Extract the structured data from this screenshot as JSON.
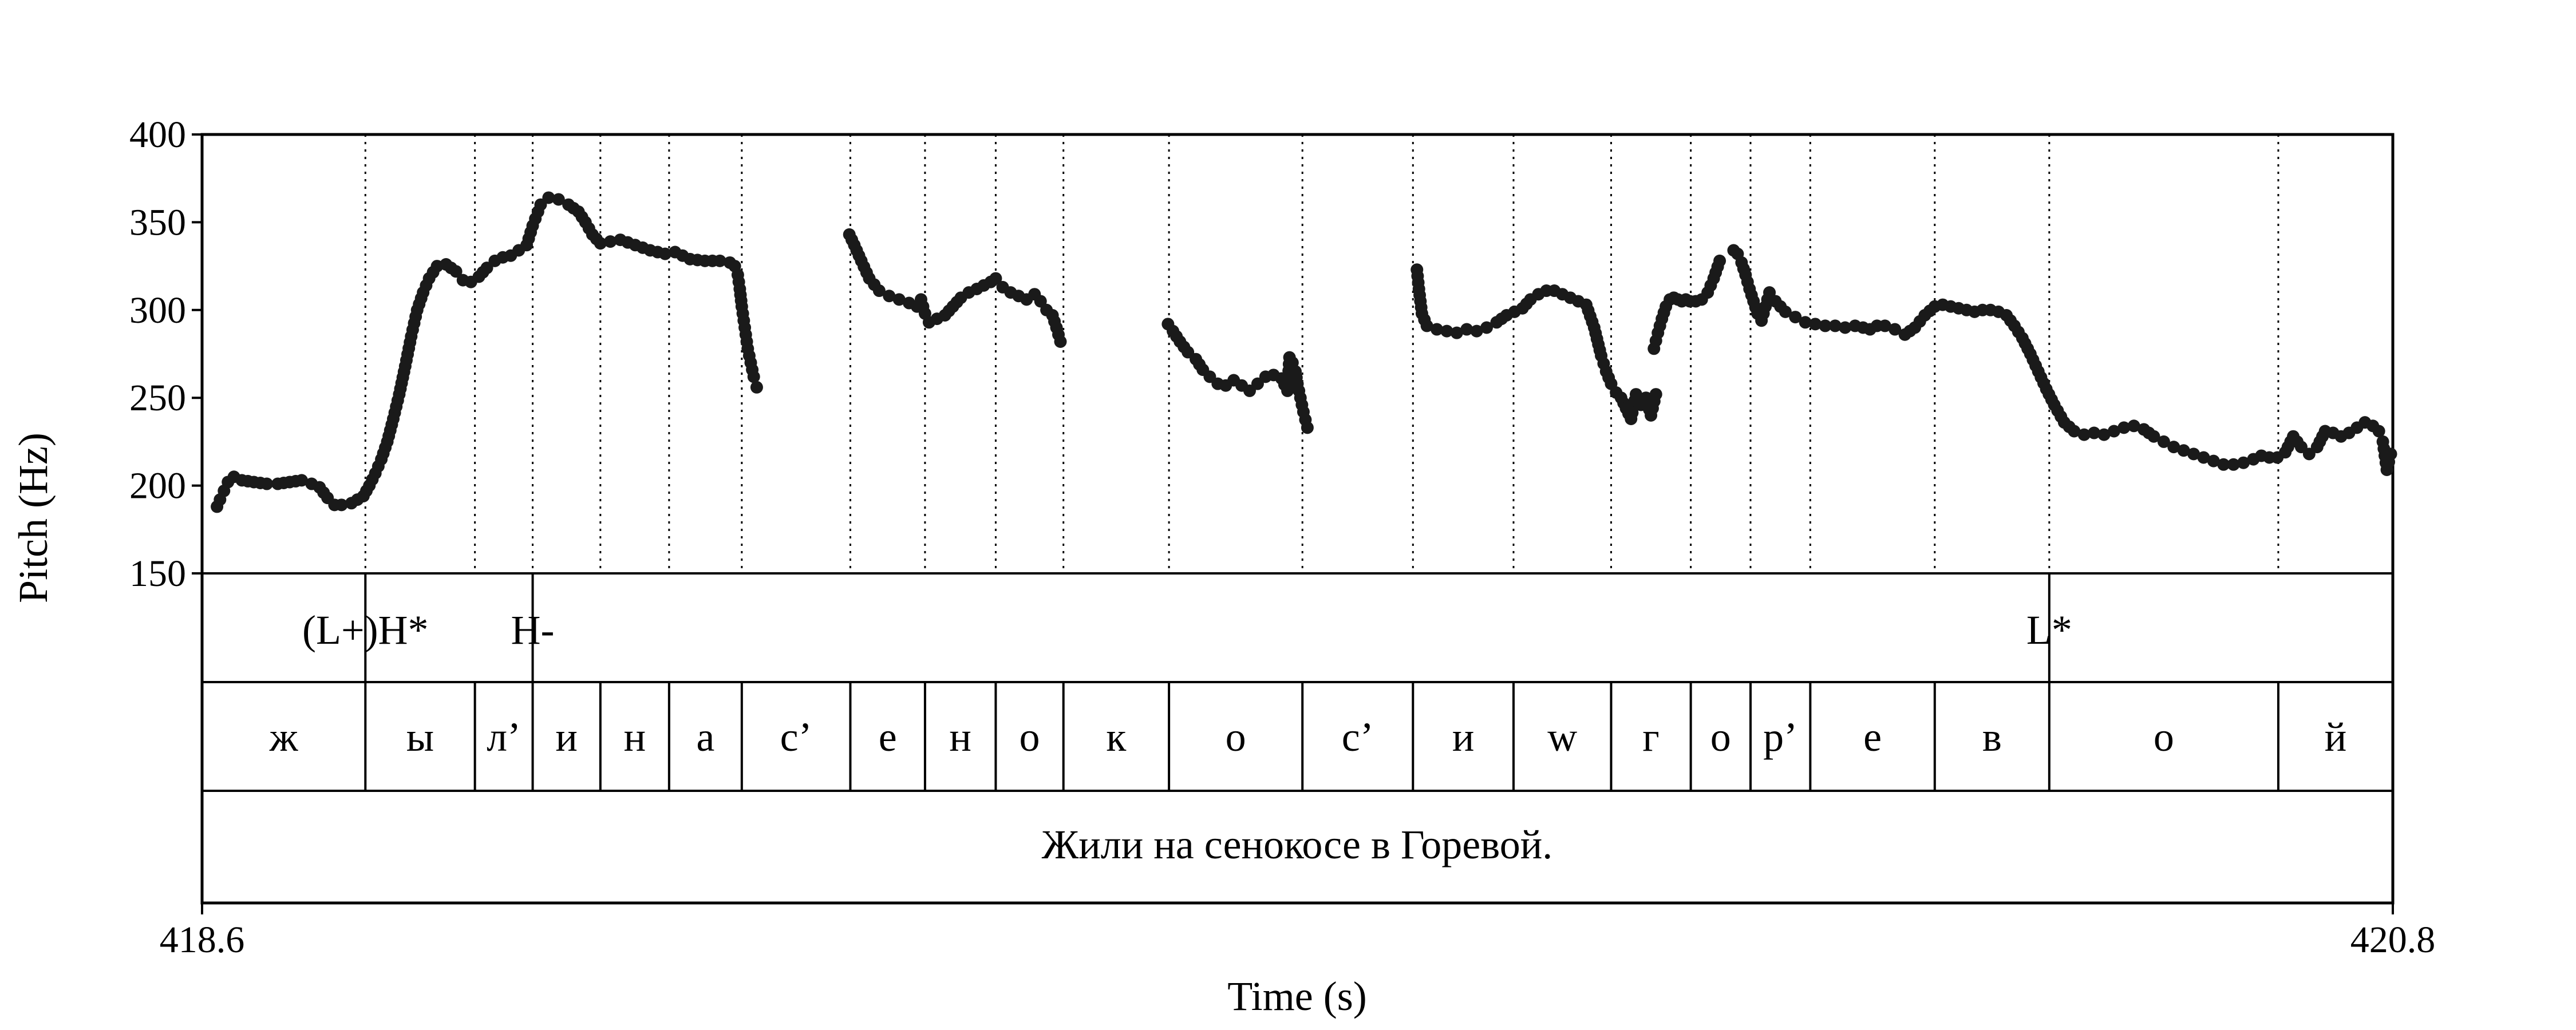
{
  "chart_data": {
    "type": "scatter",
    "xlabel": "Time (s)",
    "ylabel": "Pitch (Hz)",
    "xlim": [
      418.6,
      420.8
    ],
    "ylim": [
      150,
      400
    ],
    "x_ticks": [
      "418.6",
      "420.8"
    ],
    "y_ticks": [
      "150",
      "200",
      "250",
      "300",
      "350",
      "400"
    ],
    "boundaries": [
      418.764,
      418.874,
      418.932,
      419.0,
      419.069,
      419.142,
      419.251,
      419.326,
      419.397,
      419.465,
      419.571,
      419.705,
      419.816,
      419.917,
      420.015,
      420.095,
      420.155,
      420.215,
      420.34,
      420.455,
      420.685
    ],
    "tone_tier": [
      {
        "label": "(L+)H*",
        "t": 418.764
      },
      {
        "label": "H-",
        "t": 418.932
      },
      {
        "label": "L*",
        "t": 420.455
      }
    ],
    "segments": [
      "ж",
      "ы",
      "л’",
      "и",
      "н",
      "а",
      "с’",
      "е",
      "н",
      "о",
      "к",
      "о",
      "с’",
      "и",
      "w",
      "г",
      "о",
      "р’",
      "е",
      "в",
      "о",
      "й"
    ],
    "sentence": "Жили на сенокосе в Горевой.",
    "pitch_contours": [
      {
        "t": [
          418.615,
          418.618,
          418.622,
          418.626,
          418.632,
          418.64,
          418.652,
          418.665,
          418.676,
          418.688,
          418.7,
          418.71,
          418.718,
          418.726,
          418.733,
          418.74,
          418.75,
          418.756,
          418.762,
          418.768,
          418.774,
          418.78,
          418.786,
          418.792,
          418.798,
          418.804,
          418.81,
          418.816,
          418.822,
          418.828,
          418.836,
          418.845,
          418.855,
          418.862,
          418.87,
          418.878,
          418.886,
          418.894,
          418.902,
          418.91,
          418.918,
          418.926,
          418.932,
          418.94,
          418.948,
          418.958,
          418.968,
          418.978,
          418.985,
          418.992,
          419.0,
          419.01,
          419.02,
          419.035,
          419.05,
          419.065,
          419.075,
          419.09,
          419.105,
          419.12,
          419.13,
          419.135,
          419.138,
          419.14,
          419.142,
          419.145,
          419.148,
          419.151,
          419.154,
          419.157
        ],
        "hz": [
          188,
          192,
          197,
          202,
          205,
          203,
          202,
          201,
          201,
          202,
          203,
          201,
          199,
          193,
          189,
          189,
          190,
          192,
          194,
          200,
          207,
          215,
          225,
          238,
          252,
          268,
          285,
          300,
          310,
          318,
          325,
          326,
          322,
          317,
          316,
          319,
          324,
          328,
          330,
          331,
          334,
          337,
          348,
          360,
          364,
          363,
          360,
          356,
          350,
          343,
          338,
          339,
          340,
          337,
          334,
          332,
          333,
          329,
          328,
          328,
          327,
          325,
          320,
          312,
          302,
          290,
          278,
          270,
          262,
          256
        ]
      },
      {
        "t": [
          419.25,
          419.255,
          419.262,
          419.27,
          419.28,
          419.29,
          419.3,
          419.31,
          419.318,
          419.322,
          419.326,
          419.33,
          419.338,
          419.346,
          419.354,
          419.362,
          419.37,
          419.378,
          419.385,
          419.392,
          419.397,
          419.404,
          419.412,
          419.42,
          419.428,
          419.436,
          419.442,
          419.448,
          419.454,
          419.458,
          419.462
        ],
        "hz": [
          343,
          337,
          328,
          318,
          311,
          308,
          306,
          304,
          302,
          306,
          298,
          293,
          295,
          297,
          302,
          307,
          310,
          312,
          314,
          316,
          318,
          313,
          310,
          308,
          306,
          309,
          305,
          300,
          297,
          290,
          282
        ]
      },
      {
        "t": [
          419.57,
          419.575,
          419.582,
          419.59,
          419.598,
          419.605,
          419.612,
          419.62,
          419.628,
          419.636,
          419.644,
          419.652,
          419.66,
          419.668,
          419.676,
          419.684,
          419.69,
          419.692,
          419.695,
          419.698,
          419.7,
          419.703,
          419.706,
          419.71
        ],
        "hz": [
          292,
          288,
          282,
          276,
          272,
          266,
          262,
          258,
          257,
          260,
          257,
          254,
          258,
          262,
          263,
          261,
          254,
          273,
          270,
          265,
          258,
          250,
          242,
          233
        ]
      },
      {
        "t": [
          419.82,
          419.822,
          419.825,
          419.83,
          419.84,
          419.85,
          419.86,
          419.87,
          419.88,
          419.89,
          419.9,
          419.91,
          419.918,
          419.926,
          419.934,
          419.942,
          419.95,
          419.958,
          419.966,
          419.974,
          419.982,
          419.99,
          419.998,
          420.005,
          420.01,
          420.015,
          420.02,
          420.025,
          420.03,
          420.035,
          420.04,
          420.045,
          420.05,
          420.055,
          420.06
        ],
        "hz": [
          323,
          312,
          298,
          291,
          289,
          288,
          287,
          289,
          288,
          290,
          293,
          297,
          299,
          301,
          306,
          309,
          311,
          311,
          309,
          307,
          305,
          303,
          290,
          274,
          265,
          258,
          253,
          250,
          244,
          238,
          252,
          246,
          250,
          240,
          252
        ]
      },
      {
        "t": [
          420.058,
          420.062,
          420.066,
          420.07,
          420.074,
          420.078,
          420.082,
          420.086,
          420.09,
          420.094,
          420.1,
          420.106,
          420.112,
          420.118,
          420.124
        ],
        "hz": [
          278,
          287,
          295,
          302,
          306,
          307,
          306,
          305,
          306,
          305,
          305,
          306,
          310,
          318,
          328
        ]
      },
      {
        "t": [
          420.138,
          420.142,
          420.146,
          420.15,
          420.154,
          420.158,
          420.162,
          420.166,
          420.17,
          420.174,
          420.18,
          420.19,
          420.2,
          420.21,
          420.22,
          420.23,
          420.24,
          420.25,
          420.26,
          420.268,
          420.275,
          420.282,
          420.29,
          420.3,
          420.31,
          420.32,
          420.33,
          420.34,
          420.348,
          420.356,
          420.364,
          420.372,
          420.38,
          420.388,
          420.396,
          420.404,
          420.412,
          420.42,
          420.428,
          420.436,
          420.444,
          420.452,
          420.46,
          420.47,
          420.48,
          420.49,
          420.5,
          420.51,
          420.52,
          420.53,
          420.54,
          420.55,
          420.56,
          420.57,
          420.58,
          420.59,
          420.6,
          420.61,
          420.62,
          420.63,
          420.64,
          420.65,
          420.66,
          420.668,
          420.676,
          420.684,
          420.692,
          420.7,
          420.708,
          420.716,
          420.724,
          420.732,
          420.74,
          420.748,
          420.756,
          420.764,
          420.772,
          420.78,
          420.786,
          420.79,
          420.794,
          420.798
        ],
        "hz": [
          334,
          332,
          327,
          320,
          312,
          305,
          298,
          294,
          302,
          310,
          305,
          299,
          296,
          293,
          292,
          291,
          291,
          290,
          291,
          290,
          289,
          291,
          291,
          289,
          286,
          290,
          297,
          302,
          303,
          302,
          301,
          300,
          299,
          300,
          300,
          299,
          297,
          291,
          284,
          275,
          265,
          255,
          246,
          236,
          231,
          229,
          230,
          229,
          231,
          233,
          234,
          232,
          228,
          225,
          222,
          220,
          218,
          216,
          214,
          212,
          212,
          213,
          215,
          217,
          216,
          216,
          219,
          228,
          222,
          218,
          222,
          231,
          230,
          228,
          230,
          233,
          236,
          234,
          231,
          225,
          209,
          218
        ]
      }
    ]
  }
}
